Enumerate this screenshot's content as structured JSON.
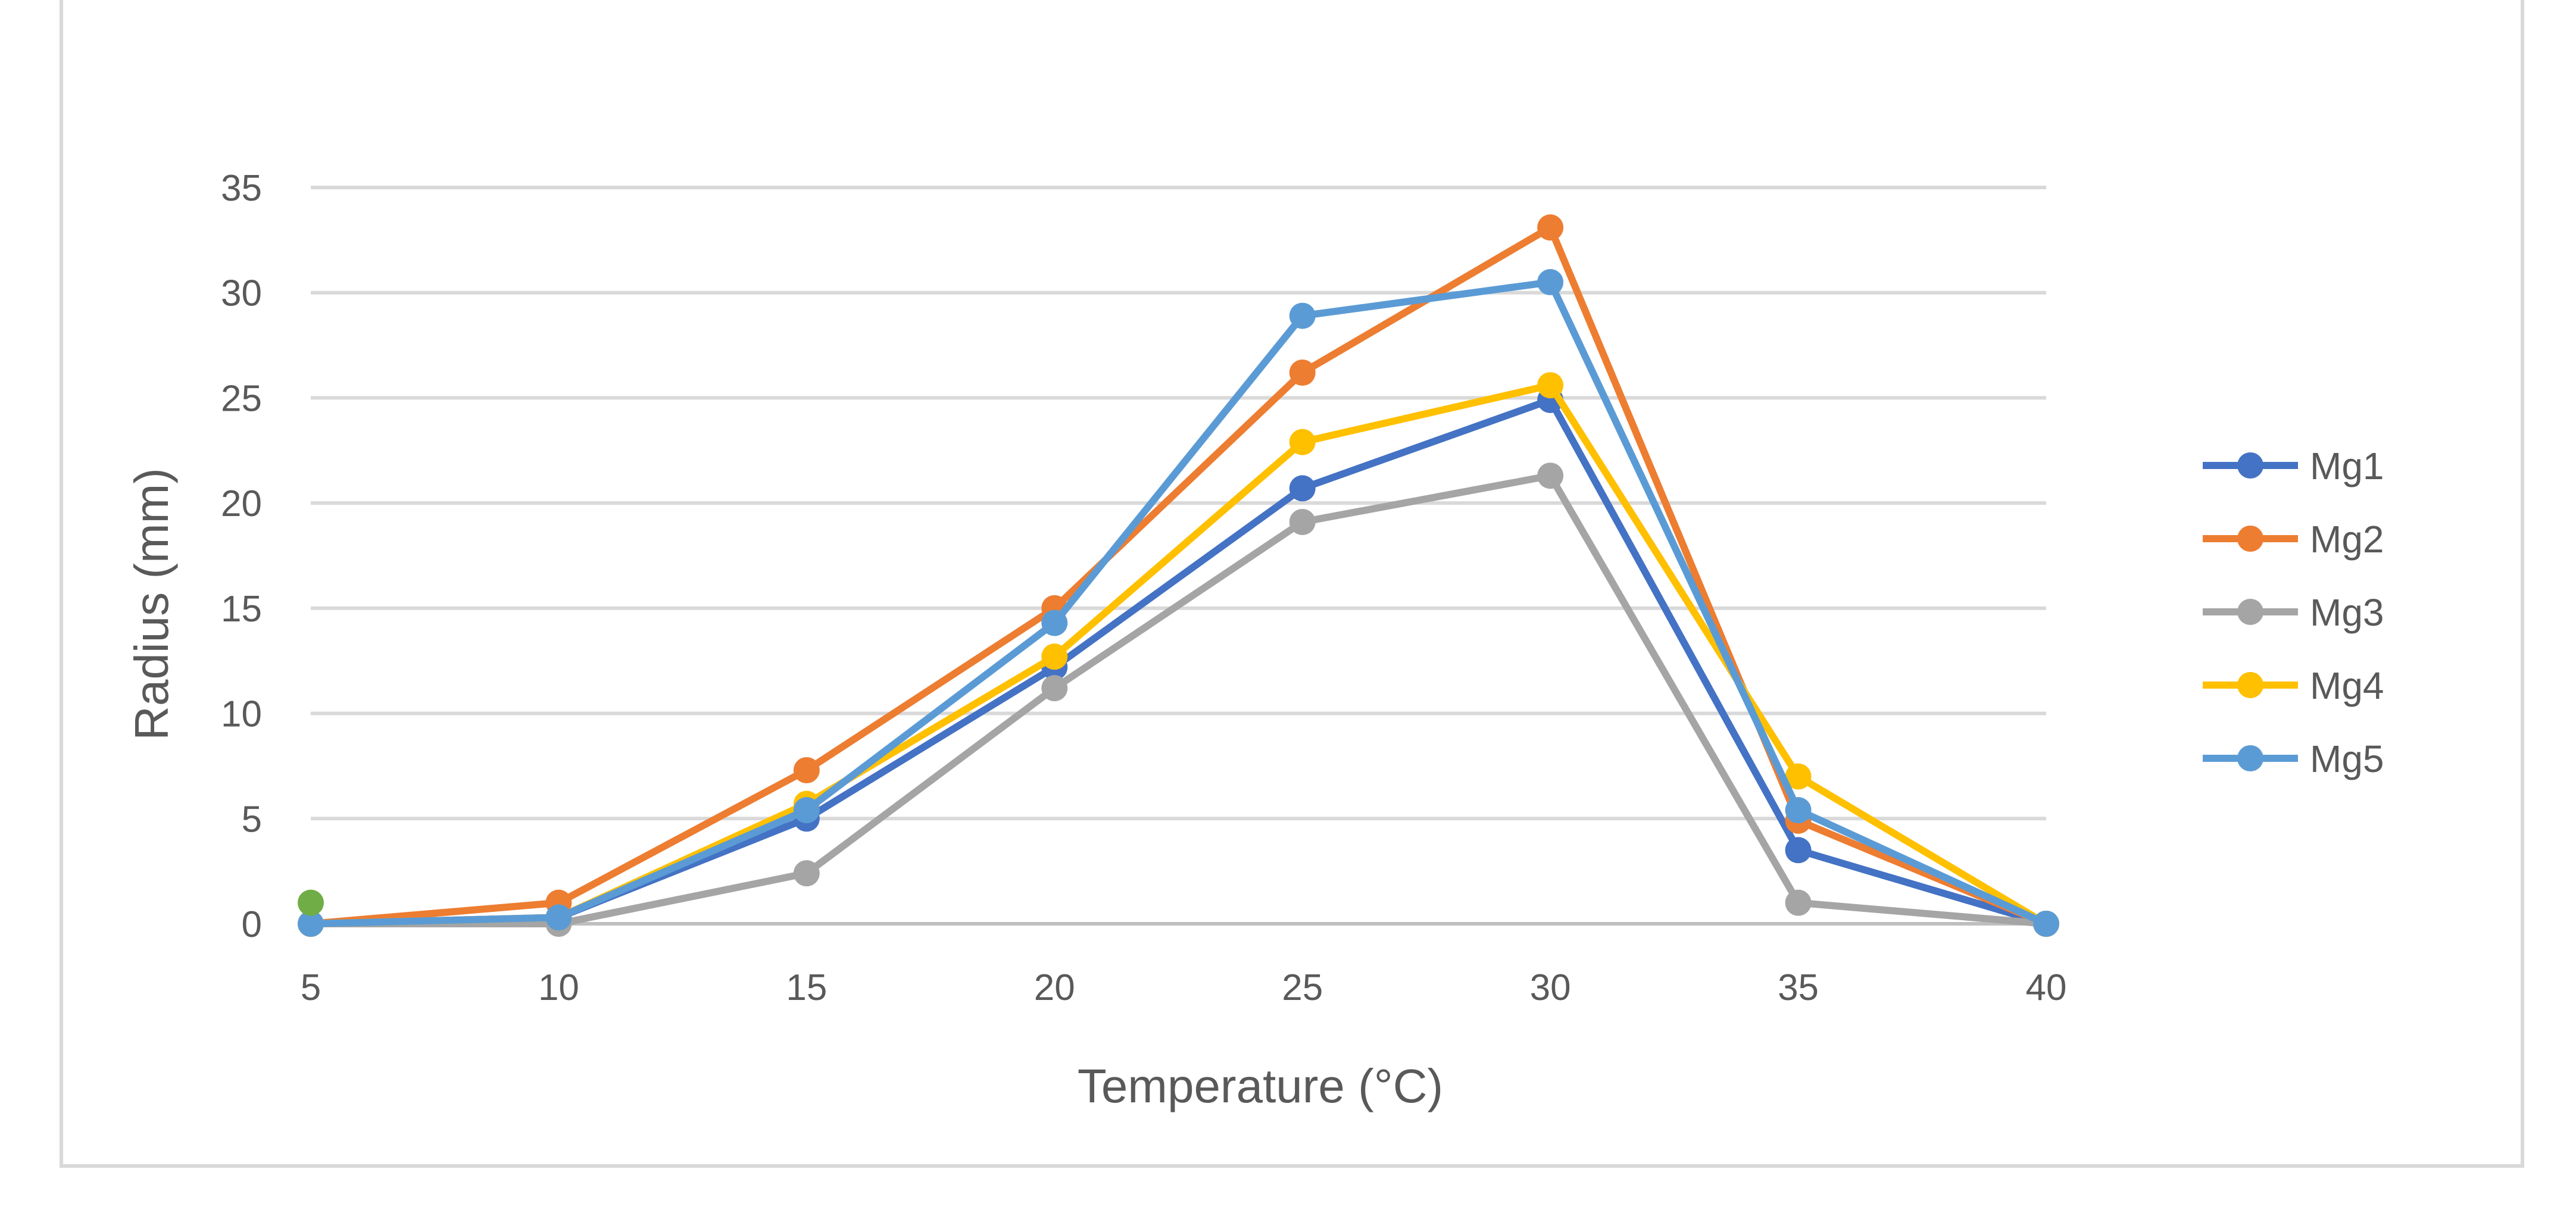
{
  "chart_data": {
    "type": "line",
    "title": "",
    "xlabel": "Temperature (°C)",
    "ylabel": "Radius (mm)",
    "x": [
      5,
      10,
      15,
      20,
      25,
      30,
      35,
      40
    ],
    "xlim": [
      5,
      40
    ],
    "ylim": [
      0,
      35
    ],
    "yticks": [
      0,
      5,
      10,
      15,
      20,
      25,
      30,
      35
    ],
    "grid": true,
    "legend_position": "right",
    "series": [
      {
        "name": "Mg1",
        "color": "#4472C4",
        "values": [
          0,
          0.3,
          5.0,
          12.2,
          20.7,
          24.9,
          3.5,
          0
        ]
      },
      {
        "name": "Mg2",
        "color": "#ED7D31",
        "values": [
          0,
          1.0,
          7.3,
          15.0,
          26.2,
          33.1,
          4.9,
          0
        ]
      },
      {
        "name": "Mg3",
        "color": "#A5A5A5",
        "values": [
          0,
          0,
          2.4,
          11.2,
          19.1,
          21.3,
          1.0,
          0
        ]
      },
      {
        "name": "Mg4",
        "color": "#FFC000",
        "values": [
          0,
          0.3,
          5.7,
          12.7,
          22.9,
          25.6,
          7.0,
          0
        ]
      },
      {
        "name": "Mg5",
        "color": "#5B9BD5",
        "values": [
          0,
          0.3,
          5.4,
          14.3,
          28.9,
          30.5,
          5.4,
          0
        ]
      }
    ],
    "annotations": [
      {
        "x": 5,
        "y": 1.0,
        "color": "#70AD47"
      }
    ]
  }
}
